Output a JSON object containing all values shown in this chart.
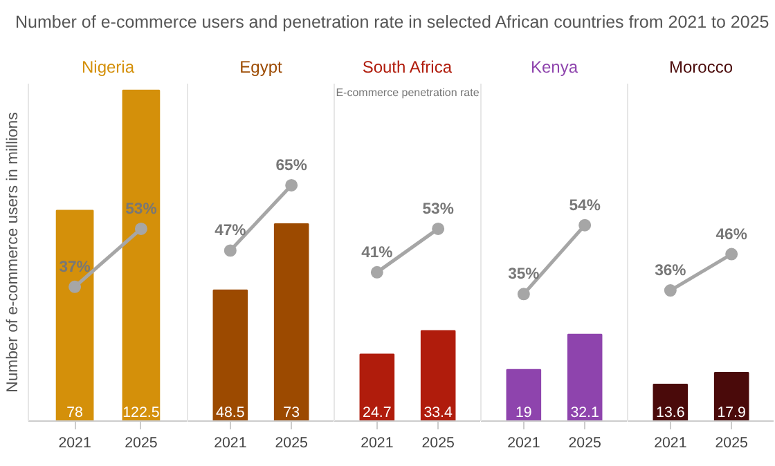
{
  "chart_data": [
    {
      "type": "bar",
      "title": "Nigeria",
      "ylabel": "Number of e-commerce users in millions",
      "annotations": [
        "Number of e-commerce users and penetration rate in selected African countries from 2021 to 2025"
      ],
      "categories": [
        "2021",
        "2025"
      ],
      "ylim": [
        0,
        125
      ],
      "y2lim": [
        0,
        93
      ],
      "tick_labels": "x",
      "grid": false,
      "series": [
        {
          "color": "#d4900a",
          "values": [
            78,
            122.5
          ],
          "data_labels": true
        },
        {
          "type": "line",
          "axis": "y2",
          "color": "#a6a6a6",
          "marker": "circle",
          "values": [
            37,
            53
          ],
          "value_labels": [
            "37%",
            "53%"
          ]
        }
      ]
    },
    {
      "type": "bar",
      "title": "Egypt",
      "categories": [
        "2021",
        "2025"
      ],
      "ylim": [
        0,
        125
      ],
      "y2lim": [
        0,
        93
      ],
      "tick_labels": "x",
      "grid": false,
      "series": [
        {
          "color": "#9c4a00",
          "values": [
            48.5,
            73
          ],
          "data_labels": true
        },
        {
          "type": "line",
          "axis": "y2",
          "color": "#a6a6a6",
          "marker": "circle",
          "values": [
            47,
            65
          ],
          "value_labels": [
            "47%",
            "65%"
          ]
        }
      ]
    },
    {
      "type": "bar",
      "title": "South Africa",
      "annotations": [
        "E-commerce penetration rate"
      ],
      "categories": [
        "2021",
        "2025"
      ],
      "ylim": [
        0,
        125
      ],
      "y2lim": [
        0,
        93
      ],
      "tick_labels": "x",
      "grid": false,
      "series": [
        {
          "color": "#b01c0c",
          "values": [
            24.7,
            33.4
          ],
          "data_labels": true
        },
        {
          "type": "line",
          "axis": "y2",
          "color": "#a6a6a6",
          "marker": "circle",
          "values": [
            41,
            53
          ],
          "value_labels": [
            "41%",
            "53%"
          ]
        }
      ]
    },
    {
      "type": "bar",
      "title": "Kenya",
      "categories": [
        "2021",
        "2025"
      ],
      "ylim": [
        0,
        125
      ],
      "y2lim": [
        0,
        93
      ],
      "tick_labels": "x",
      "grid": false,
      "series": [
        {
          "color": "#8e44ad",
          "values": [
            19,
            32.1
          ],
          "data_labels": true
        },
        {
          "type": "line",
          "axis": "y2",
          "color": "#a6a6a6",
          "marker": "circle",
          "values": [
            35,
            54
          ],
          "value_labels": [
            "35%",
            "54%"
          ]
        }
      ]
    },
    {
      "type": "bar",
      "title": "Morocco",
      "categories": [
        "2021",
        "2025"
      ],
      "ylim": [
        0,
        125
      ],
      "y2lim": [
        0,
        93
      ],
      "tick_labels": "x",
      "grid": false,
      "series": [
        {
          "color": "#4a0a0a",
          "values": [
            13.6,
            17.9
          ],
          "data_labels": true
        },
        {
          "type": "line",
          "axis": "y2",
          "color": "#a6a6a6",
          "marker": "circle",
          "values": [
            36,
            46
          ],
          "value_labels": [
            "36%",
            "46%"
          ]
        }
      ]
    }
  ]
}
